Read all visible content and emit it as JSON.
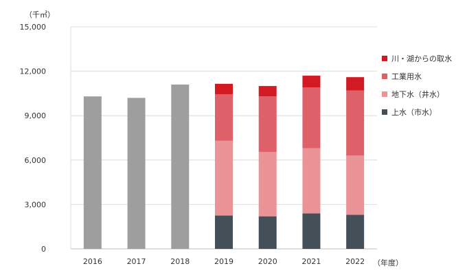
{
  "chart_data": {
    "type": "bar",
    "stacked": true,
    "title": "",
    "ylabel": "（千㎥）",
    "xlabel": "（年度）",
    "ylim": [
      0,
      15000
    ],
    "yticks": [
      0,
      3000,
      6000,
      9000,
      12000,
      15000
    ],
    "ytick_labels": [
      "0",
      "3,000",
      "6,000",
      "9,000",
      "12,000",
      "15,000"
    ],
    "grid": true,
    "legend_position": "right",
    "categories": [
      "2016",
      "2017",
      "2018",
      "2019",
      "2020",
      "2021",
      "2022"
    ],
    "totals": [
      {
        "category": "2016",
        "value": 10300,
        "color": "#9e9e9e"
      },
      {
        "category": "2017",
        "value": 10200,
        "color": "#9e9e9e"
      },
      {
        "category": "2018",
        "value": 11100,
        "color": "#9e9e9e"
      }
    ],
    "series": [
      {
        "name": "上水（市水）",
        "color": "#454f58",
        "values": [
          null,
          null,
          null,
          2250,
          2200,
          2400,
          2300
        ]
      },
      {
        "name": "地下水（井水）",
        "color": "#ea9498",
        "values": [
          null,
          null,
          null,
          5050,
          4350,
          4400,
          4000
        ]
      },
      {
        "name": "工業用水",
        "color": "#de6068",
        "values": [
          null,
          null,
          null,
          3150,
          3750,
          4100,
          4400
        ]
      },
      {
        "name": "川・湖からの取水",
        "color": "#d21a23",
        "values": [
          null,
          null,
          null,
          700,
          700,
          800,
          900
        ]
      }
    ]
  }
}
